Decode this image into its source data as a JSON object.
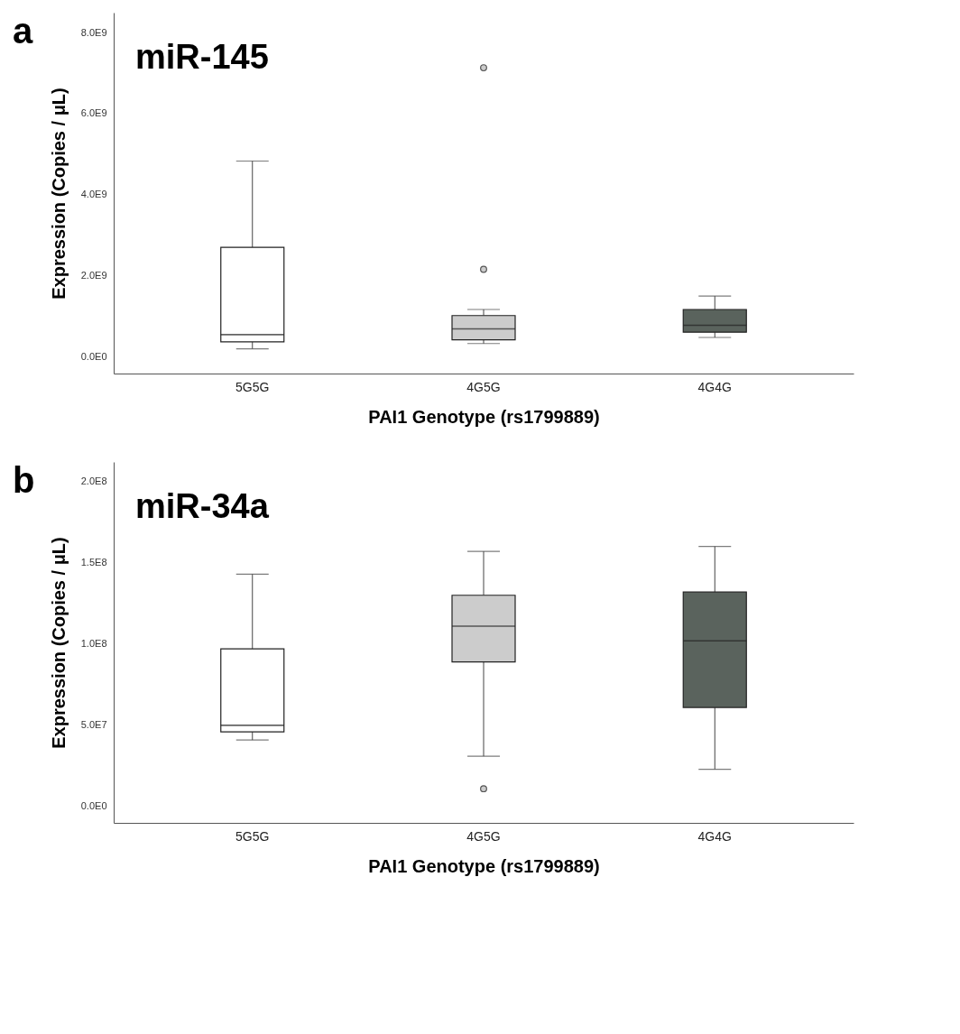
{
  "chart_data": [
    {
      "type": "box",
      "title": "miR-145",
      "xlabel": "PAI1 Genotype (rs1799889)",
      "ylabel": "Expression (Copies / μL)",
      "annotations": [
        "a"
      ],
      "categories": [
        "5G5G",
        "4G5G",
        "4G4G"
      ],
      "colors": [
        "#ffffff",
        "#cccccc",
        "#5a635d"
      ],
      "boxes": [
        {
          "low": 200000000.0,
          "q1": 370000000.0,
          "median": 550000000.0,
          "q3": 2700000000.0,
          "high": 4830000000.0
        },
        {
          "low": 330000000.0,
          "q1": 420000000.0,
          "median": 690000000.0,
          "q3": 1020000000.0,
          "high": 1170000000.0,
          "outliers": [
            2160000000.0,
            7130000000.0
          ]
        },
        {
          "low": 480000000.0,
          "q1": 610000000.0,
          "median": 780000000.0,
          "q3": 1170000000.0,
          "high": 1500000000.0
        }
      ],
      "ylim": [
        -410000000.0,
        8490000000.0
      ],
      "yticks": [
        {
          "value": 0,
          "label": "0.0E0"
        },
        {
          "value": 2000000000.0,
          "label": "2.0E9"
        },
        {
          "value": 4000000000.0,
          "label": "4.0E9"
        },
        {
          "value": 6000000000.0,
          "label": "6.0E9"
        },
        {
          "value": 8000000000.0,
          "label": "8.0E9"
        }
      ]
    },
    {
      "type": "box",
      "title": "miR-34a",
      "xlabel": "PAI1 Genotype (rs1799889)",
      "ylabel": "Expression (Copies / μL)",
      "annotations": [
        "b"
      ],
      "categories": [
        "5G5G",
        "4G5G",
        "4G4G"
      ],
      "colors": [
        "#ffffff",
        "#cccccc",
        "#5a635d"
      ],
      "boxes": [
        {
          "low": 41000000.0,
          "q1": 46000000.0,
          "median": 50000000.0,
          "q3": 97000000.0,
          "high": 143000000.0
        },
        {
          "low": 31000000.0,
          "q1": 89000000.0,
          "median": 111000000.0,
          "q3": 130000000.0,
          "high": 157000000.0,
          "outliers": [
            11000000.0
          ]
        },
        {
          "low": 23000000.0,
          "q1": 61000000.0,
          "median": 102000000.0,
          "q3": 132000000.0,
          "high": 160000000.0
        }
      ],
      "ylim": [
        -10000000.0,
        212000000.0
      ],
      "yticks": [
        {
          "value": 0,
          "label": "0.0E0"
        },
        {
          "value": 50000000.0,
          "label": "5.0E7"
        },
        {
          "value": 100000000.0,
          "label": "1.0E8"
        },
        {
          "value": 150000000.0,
          "label": "1.5E8"
        },
        {
          "value": 200000000.0,
          "label": "2.0E8"
        }
      ]
    }
  ]
}
